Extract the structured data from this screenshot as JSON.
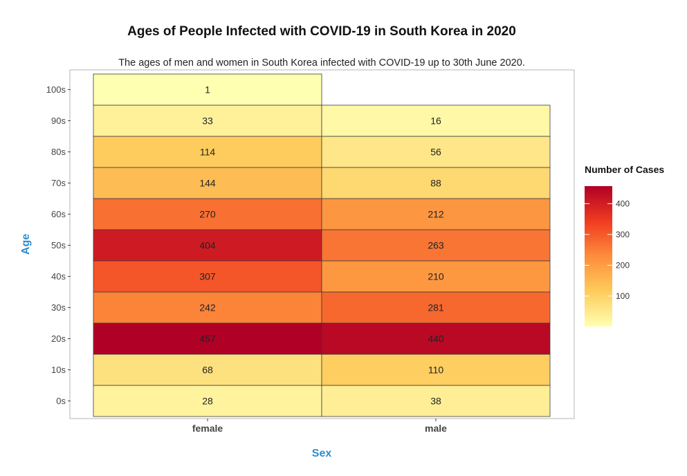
{
  "chart_data": {
    "type": "heatmap",
    "title": "Ages of People Infected with COVID-19 in South Korea in 2020",
    "subtitle": "The ages of men and women in South Korea infected with COVID-19 up to 30th June 2020.",
    "xlabel": "Sex",
    "ylabel": "Age",
    "x_categories": [
      "female",
      "male"
    ],
    "y_categories": [
      "0s",
      "10s",
      "20s",
      "30s",
      "40s",
      "50s",
      "60s",
      "70s",
      "80s",
      "90s",
      "100s"
    ],
    "values": {
      "female": [
        28,
        68,
        457,
        242,
        307,
        404,
        270,
        144,
        114,
        33,
        1
      ],
      "male": [
        38,
        110,
        440,
        281,
        210,
        263,
        212,
        88,
        56,
        16,
        null
      ]
    },
    "legend": {
      "title": "Number of Cases",
      "ticks": [
        100,
        200,
        300,
        400
      ],
      "range": [
        1,
        457
      ],
      "position": "right"
    },
    "colors": {
      "low": "#ffffb2",
      "mid_low": "#fecc5c",
      "mid": "#fd8d3c",
      "mid_high": "#f03b20",
      "high": "#b10026",
      "axis_title": "#2c8fd0"
    }
  }
}
